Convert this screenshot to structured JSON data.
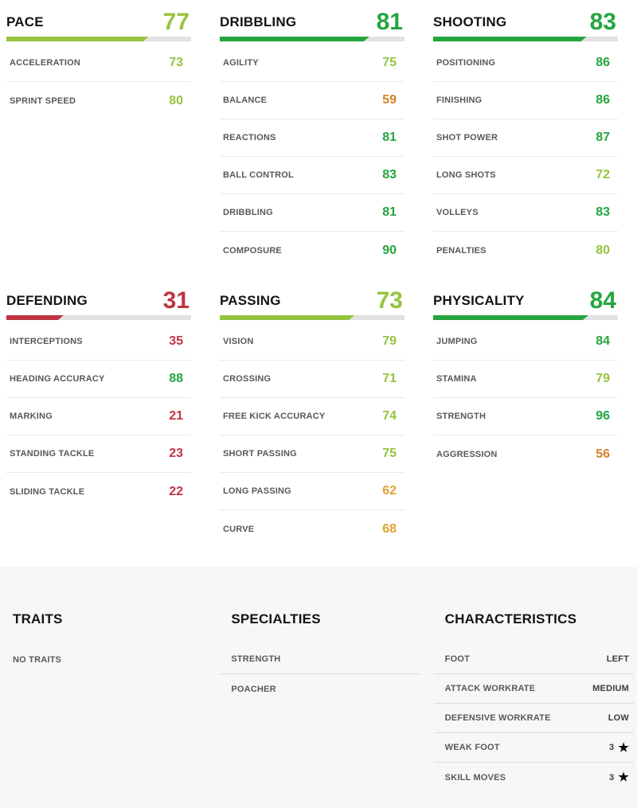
{
  "colors": {
    "great": "#25a53f",
    "good": "#94c43f",
    "fair": "#e0a32e",
    "poor": "#d4812c",
    "bad": "#bf3441",
    "bar_track": "#e2e2e2",
    "panel_background": "#f7f7f7"
  },
  "sections": [
    {
      "title": "PACE",
      "total": 77,
      "stats": [
        {
          "label": "ACCELERATION",
          "value": 73
        },
        {
          "label": "SPRINT SPEED",
          "value": 80
        }
      ]
    },
    {
      "title": "DRIBBLING",
      "total": 81,
      "stats": [
        {
          "label": "AGILITY",
          "value": 75
        },
        {
          "label": "BALANCE",
          "value": 59
        },
        {
          "label": "REACTIONS",
          "value": 81
        },
        {
          "label": "BALL CONTROL",
          "value": 83
        },
        {
          "label": "DRIBBLING",
          "value": 81
        },
        {
          "label": "COMPOSURE",
          "value": 90
        }
      ]
    },
    {
      "title": "SHOOTING",
      "total": 83,
      "stats": [
        {
          "label": "POSITIONING",
          "value": 86
        },
        {
          "label": "FINISHING",
          "value": 86
        },
        {
          "label": "SHOT POWER",
          "value": 87
        },
        {
          "label": "LONG SHOTS",
          "value": 72
        },
        {
          "label": "VOLLEYS",
          "value": 83
        },
        {
          "label": "PENALTIES",
          "value": 80
        }
      ]
    },
    {
      "title": "DEFENDING",
      "total": 31,
      "stats": [
        {
          "label": "INTERCEPTIONS",
          "value": 35
        },
        {
          "label": "HEADING ACCURACY",
          "value": 88
        },
        {
          "label": "MARKING",
          "value": 21
        },
        {
          "label": "STANDING TACKLE",
          "value": 23
        },
        {
          "label": "SLIDING TACKLE",
          "value": 22
        }
      ]
    },
    {
      "title": "PASSING",
      "total": 73,
      "stats": [
        {
          "label": "VISION",
          "value": 79
        },
        {
          "label": "CROSSING",
          "value": 71
        },
        {
          "label": "FREE KICK ACCURACY",
          "value": 74
        },
        {
          "label": "SHORT PASSING",
          "value": 75
        },
        {
          "label": "LONG PASSING",
          "value": 62
        },
        {
          "label": "CURVE",
          "value": 68
        }
      ]
    },
    {
      "title": "PHYSICALITY",
      "total": 84,
      "stats": [
        {
          "label": "JUMPING",
          "value": 84
        },
        {
          "label": "STAMINA",
          "value": 79
        },
        {
          "label": "STRENGTH",
          "value": 96
        },
        {
          "label": "AGGRESSION",
          "value": 56
        }
      ]
    }
  ],
  "traits": {
    "title": "TRAITS",
    "empty": "NO TRAITS"
  },
  "specialties": {
    "title": "SPECIALTIES",
    "items": [
      "STRENGTH",
      "POACHER"
    ]
  },
  "characteristics": {
    "title": "CHARACTERISTICS",
    "star_glyph": "★",
    "rows": [
      {
        "label": "FOOT",
        "value": "LEFT",
        "star": false
      },
      {
        "label": "ATTACK WORKRATE",
        "value": "MEDIUM",
        "star": false
      },
      {
        "label": "DEFENSIVE WORKRATE",
        "value": "LOW",
        "star": false
      },
      {
        "label": "WEAK FOOT",
        "value": "3",
        "star": true
      },
      {
        "label": "SKILL MOVES",
        "value": "3",
        "star": true
      }
    ]
  }
}
